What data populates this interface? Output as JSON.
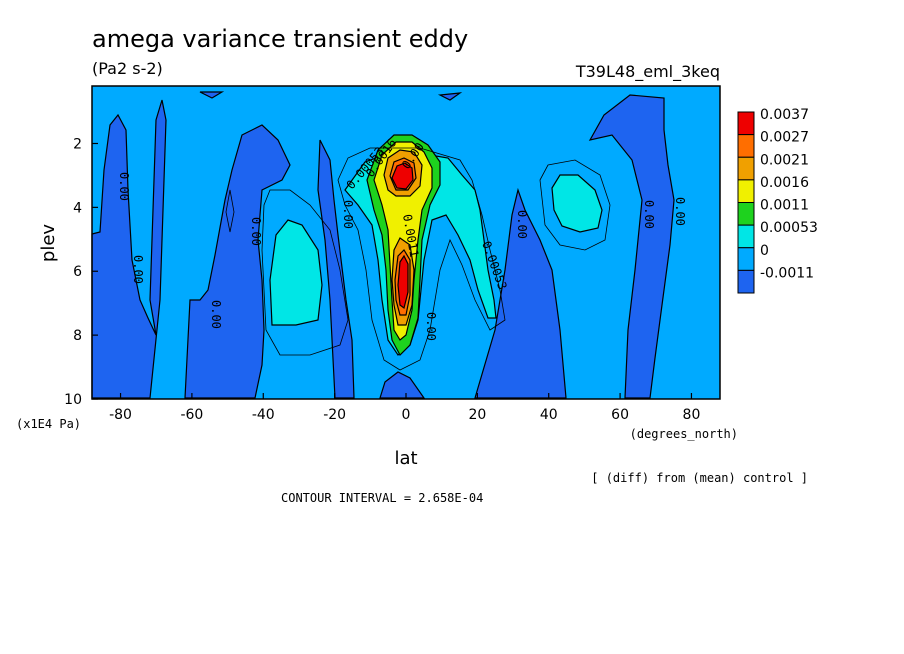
{
  "chart_data": {
    "type": "heatmap",
    "title": "amega variance transient eddy",
    "subtitle": "(Pa2 s-2)",
    "run_label": "T39L48_eml_3keq",
    "xlabel": "lat",
    "xunits": "(degrees_north)",
    "ylabel": "plev",
    "yunits": "(x1E4 Pa)",
    "xlim": [
      -88,
      88
    ],
    "ylim": [
      10,
      0.2
    ],
    "x_ticks": [
      "-80",
      "-60",
      "-40",
      "-20",
      "0",
      "20",
      "40",
      "60",
      "80"
    ],
    "y_ticks": [
      "2",
      "4",
      "6",
      "8",
      "10"
    ],
    "levels": [
      "-0.0011",
      "0",
      "0.00053",
      "0.0011",
      "0.0016",
      "0.0021",
      "0.0027",
      "0.0037"
    ],
    "level_colors": [
      "#1e64f0",
      "#00aaff",
      "#00e6e6",
      "#1ed21e",
      "#f0f000",
      "#f0a000",
      "#ff6e00",
      "#ee0000"
    ],
    "contour_labels": [
      "0.00",
      "0.00",
      "0.00",
      "0.00",
      "0.00",
      "0.00",
      "0.00",
      "0.00",
      "0.00",
      "0.00",
      "0.00053",
      "0.00053",
      "0.0011",
      "0.0016"
    ],
    "footer_note": "[ (diff) from (mean) control ]",
    "contour_interval": "CONTOUR INTERVAL = 2.658E-04"
  }
}
